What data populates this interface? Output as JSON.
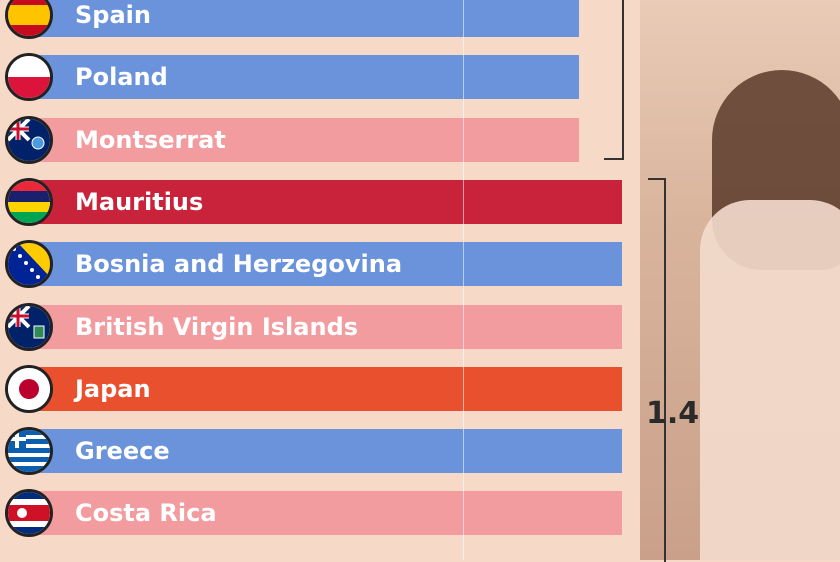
{
  "chart_data": {
    "type": "bar",
    "orientation": "horizontal",
    "categories": [
      "Spain",
      "Poland",
      "Montserrat",
      "Mauritius",
      "Bosnia and Herzegovina",
      "British Virgin Islands",
      "Japan",
      "Greece",
      "Costa Rica"
    ],
    "values": [
      1.3,
      1.3,
      1.3,
      1.4,
      1.4,
      1.4,
      1.4,
      1.4,
      1.4
    ],
    "bar_colors": [
      "#6b93db",
      "#6b93db",
      "#f39ca0",
      "#c8233b",
      "#6b93db",
      "#f39ca0",
      "#e8502e",
      "#6b93db",
      "#f39ca0"
    ],
    "group_value_label": "1.4",
    "xlim": [
      0,
      1.6
    ]
  },
  "flags": [
    "spain-flag-icon",
    "poland-flag-icon",
    "montserrat-flag-icon",
    "mauritius-flag-icon",
    "bosnia-flag-icon",
    "bvi-flag-icon",
    "japan-flag-icon",
    "greece-flag-icon",
    "costa-rica-flag-icon"
  ]
}
